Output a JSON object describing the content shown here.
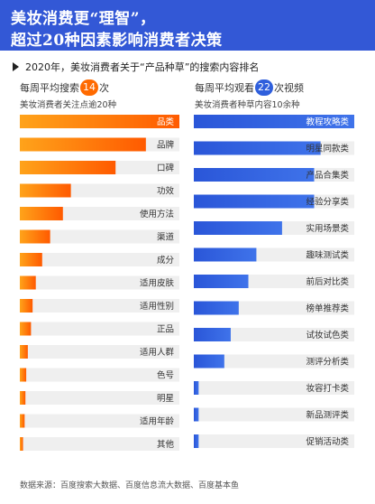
{
  "header": {
    "title_line1": "美妆消费更“理智”，",
    "title_line2": "超过20种因素影响消费者决策"
  },
  "subtitle": "2020年，美妆消费者关于“产品种草”的搜索内容排名",
  "left": {
    "kpi_prefix": "每周平均搜索",
    "kpi_value": "14",
    "kpi_suffix": "次",
    "note": "美妆消费者关注点逾20种"
  },
  "right": {
    "kpi_prefix": "每周平均观看",
    "kpi_value": "22",
    "kpi_suffix": "次视频",
    "note": "美妆消费者种草内容10余种"
  },
  "colors": {
    "header": "#3358d6",
    "orange": "#ff8a00",
    "orange_dark": "#ff5a00",
    "blue": "#2f5fdc",
    "track": "#efefef"
  },
  "chart_data": [
    {
      "type": "bar",
      "orientation": "horizontal",
      "categories": [
        "品类",
        "品牌",
        "口碑",
        "功效",
        "使用方法",
        "渠道",
        "成分",
        "适用皮肤",
        "适用性别",
        "正品",
        "适用人群",
        "色号",
        "明星",
        "适用年龄",
        "其他"
      ],
      "values": [
        1.0,
        0.79,
        0.6,
        0.32,
        0.27,
        0.19,
        0.14,
        0.1,
        0.08,
        0.07,
        0.05,
        0.04,
        0.035,
        0.03,
        0.02
      ],
      "xlim": [
        0,
        1
      ]
    },
    {
      "type": "bar",
      "orientation": "horizontal",
      "categories": [
        "教程攻略类",
        "明星同款类",
        "产品合集类",
        "经验分享类",
        "实用场景类",
        "趣味测试类",
        "前后对比类",
        "榜单推荐类",
        "试妆试色类",
        "测评分析类",
        "妆容打卡类",
        "新品测评类",
        "促销活动类"
      ],
      "values": [
        1.0,
        0.79,
        0.75,
        0.75,
        0.55,
        0.39,
        0.34,
        0.28,
        0.23,
        0.19,
        0.03,
        0.03,
        0.03
      ],
      "xlim": [
        0,
        1
      ]
    }
  ],
  "source": "数据来源：百度搜索大数据、百度信息流大数据、百度基本鱼"
}
